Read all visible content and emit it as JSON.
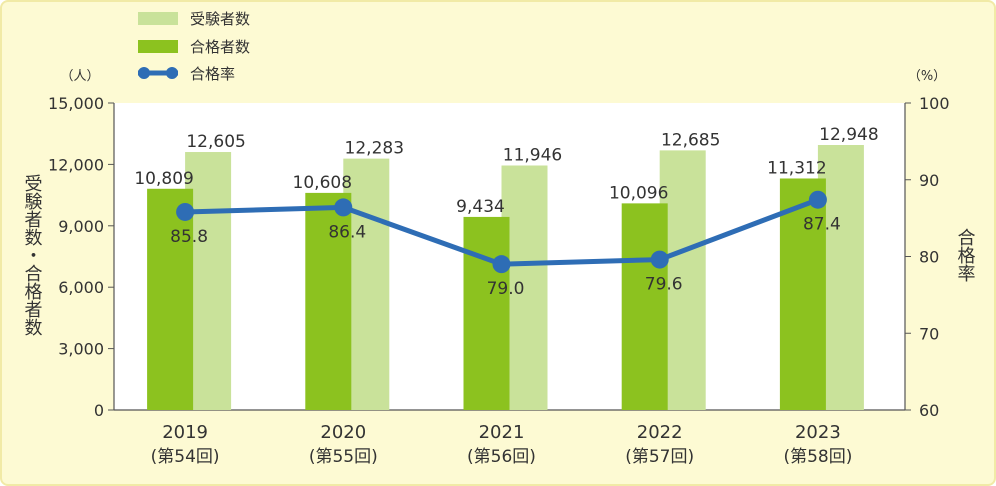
{
  "chart_data": {
    "type": "bar",
    "categories": [
      "2019",
      "2020",
      "2021",
      "2022",
      "2023"
    ],
    "category_sublabels": [
      "(第54回)",
      "(第55回)",
      "(第56回)",
      "(第57回)",
      "(第58回)"
    ],
    "series": [
      {
        "name": "受験者数",
        "type": "bar",
        "axis": "left",
        "color": "#c9e29a",
        "values": [
          12605,
          12283,
          11946,
          12685,
          12948
        ],
        "labels": [
          "12,605",
          "12,283",
          "11,946",
          "12,685",
          "12,948"
        ]
      },
      {
        "name": "合格者数",
        "type": "bar",
        "axis": "left",
        "color": "#8cc21f",
        "values": [
          10809,
          10608,
          9434,
          10096,
          11312
        ],
        "labels": [
          "10,809",
          "10,608",
          "9,434",
          "10,096",
          "11,312"
        ]
      },
      {
        "name": "合格率",
        "type": "line",
        "axis": "right",
        "color": "#2e6db5",
        "values": [
          85.8,
          86.4,
          79.0,
          79.6,
          87.4
        ],
        "labels": [
          "85.8",
          "86.4",
          "79.0",
          "79.6",
          "87.4"
        ]
      }
    ],
    "ylabel": "受験者数・合格者数",
    "yunit": "（人）",
    "ylim": [
      0,
      15000
    ],
    "yticks": [
      "0",
      "3,000",
      "6,000",
      "9,000",
      "12,000",
      "15,000"
    ],
    "y2label": "合格率",
    "y2unit": "（%）",
    "y2lim": [
      60,
      100
    ],
    "y2ticks": [
      "60",
      "70",
      "80",
      "90",
      "100"
    ],
    "legend_position": "top-left",
    "grid": false
  }
}
